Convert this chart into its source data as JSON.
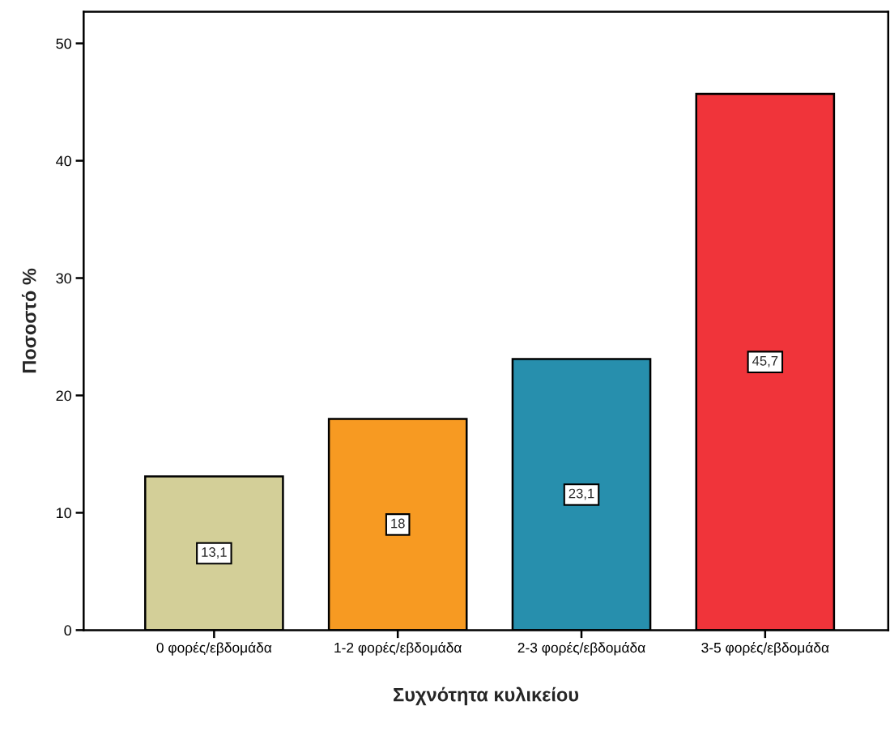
{
  "chart_data": {
    "type": "bar",
    "categories": [
      "0 φορές/εβδομάδα",
      "1-2 φορές/εβδομάδα",
      "2-3 φορές/εβδομάδα",
      "3-5 φορές/εβδομάδα"
    ],
    "values": [
      13.1,
      18,
      23.1,
      45.7
    ],
    "value_labels": [
      "13,1",
      "18",
      "23,1",
      "45,7"
    ],
    "colors": [
      "#d3cf98",
      "#f79a22",
      "#278fad",
      "#f0343a"
    ],
    "xlabel": "Συχνότητα κυλικείου",
    "ylabel": "Ποσοστό %",
    "ylim": [
      0,
      52.7
    ],
    "yticks": [
      0,
      10,
      20,
      30,
      40,
      50
    ],
    "grid": false,
    "legend": false
  }
}
